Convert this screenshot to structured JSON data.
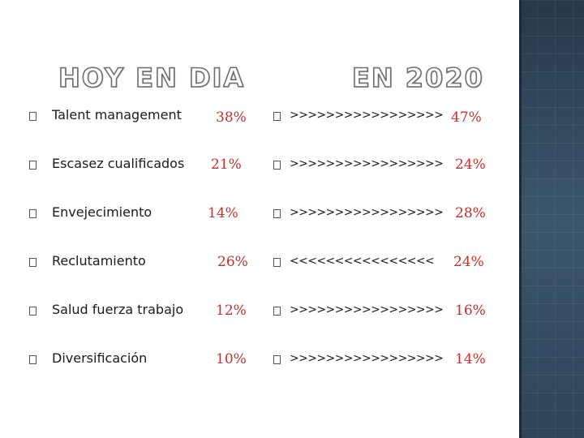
{
  "headings": {
    "left": "HOY EN DIA",
    "right": "EN 2020"
  },
  "rows": [
    {
      "label": "Talent management",
      "now": "38%",
      "trend": ">>>>>>>>>>>>>>>>>",
      "future": "47%"
    },
    {
      "label": "Escasez cualificados",
      "now": "21%",
      "trend": ">>>>>>>>>>>>>>>>>",
      "future": "24%"
    },
    {
      "label": "Envejecimiento",
      "now": "14%",
      "trend": ">>>>>>>>>>>>>>>>>",
      "future": "28%"
    },
    {
      "label": "Reclutamiento",
      "now": "26%",
      "trend": "<<<<<<<<<<<<<<<<",
      "future": "24%"
    },
    {
      "label": "Salud fuerza trabajo",
      "now": "12%",
      "trend": ">>>>>>>>>>>>>>>>>",
      "future": "16%"
    },
    {
      "label": "Diversificación",
      "now": "10%",
      "trend": ">>>>>>>>>>>>>>>>>",
      "future": "14%"
    }
  ],
  "colors": {
    "percent": "#c0322d",
    "panel": "#2e4458"
  }
}
